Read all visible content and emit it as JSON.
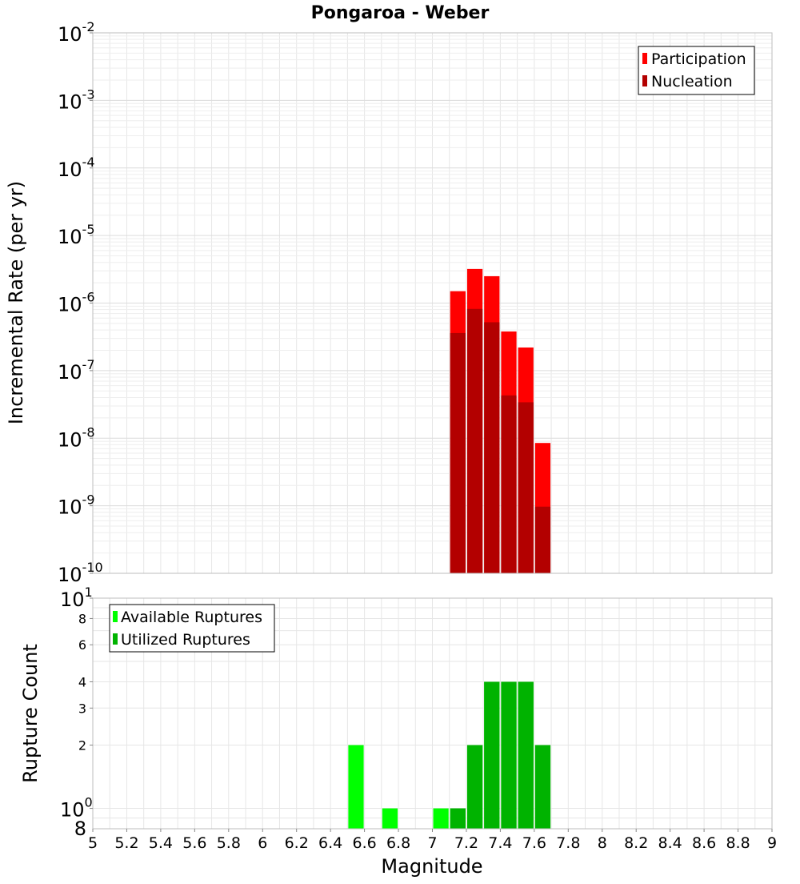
{
  "chart_data": [
    {
      "type": "bar",
      "title": "Pongaroa - Weber",
      "xlabel": "Magnitude",
      "ylabel": "Incremental Rate (per yr)",
      "yscale": "log",
      "xlim": [
        5,
        9
      ],
      "ylim": [
        1e-10,
        0.01
      ],
      "grid": true,
      "legend_position": "top-right",
      "bar_width": 0.1,
      "y_ticks": [
        {
          "value": 0.01,
          "base": "10",
          "exp": "-2"
        },
        {
          "value": 0.001,
          "base": "10",
          "exp": "-3"
        },
        {
          "value": 0.0001,
          "base": "10",
          "exp": "-4"
        },
        {
          "value": 1e-05,
          "base": "10",
          "exp": "-5"
        },
        {
          "value": 1e-06,
          "base": "10",
          "exp": "-6"
        },
        {
          "value": 1e-07,
          "base": "10",
          "exp": "-7"
        },
        {
          "value": 1e-08,
          "base": "10",
          "exp": "-8"
        },
        {
          "value": 1e-09,
          "base": "10",
          "exp": "-9"
        },
        {
          "value": 1e-10,
          "base": "10",
          "exp": "-10"
        }
      ],
      "series": [
        {
          "name": "Participation",
          "color": "#ff0000",
          "x": [
            7.15,
            7.25,
            7.35,
            7.45,
            7.55,
            7.65
          ],
          "values": [
            1.5e-06,
            3.2e-06,
            2.5e-06,
            3.8e-07,
            2.2e-07,
            8.5e-09
          ]
        },
        {
          "name": "Nucleation",
          "color": "#b30000",
          "x": [
            7.15,
            7.25,
            7.35,
            7.45,
            7.55,
            7.65
          ],
          "values": [
            3.6e-07,
            8.2e-07,
            5.2e-07,
            4.3e-08,
            3.4e-08,
            9.7e-10
          ]
        }
      ]
    },
    {
      "type": "bar",
      "xlabel": "Magnitude",
      "ylabel": "Rupture Count",
      "yscale": "log",
      "xlim": [
        5,
        9
      ],
      "ylim": [
        0.8,
        10
      ],
      "grid": true,
      "legend_position": "top-left",
      "bar_width": 0.1,
      "x_ticks": [
        "5",
        "5.2",
        "5.4",
        "5.6",
        "5.8",
        "6",
        "6.2",
        "6.4",
        "6.6",
        "6.8",
        "7",
        "7.2",
        "7.4",
        "7.6",
        "7.8",
        "8",
        "8.2",
        "8.4",
        "8.6",
        "8.8",
        "9"
      ],
      "y_ticks_major": [
        {
          "value": 10,
          "base": "10",
          "exp": "1"
        },
        {
          "value": 1,
          "base": "10",
          "exp": "0"
        }
      ],
      "y_ticks_minor": [
        {
          "value": 8,
          "label": "8"
        },
        {
          "value": 6,
          "label": "6"
        },
        {
          "value": 4,
          "label": "4"
        },
        {
          "value": 3,
          "label": "3"
        },
        {
          "value": 2,
          "label": "2"
        }
      ],
      "y_bottom_label": {
        "value": 0.8,
        "label": "8"
      },
      "series": [
        {
          "name": "Available Ruptures",
          "color": "#00ff00",
          "x": [
            6.55,
            6.75,
            7.05,
            7.15,
            7.25,
            7.35,
            7.45,
            7.55,
            7.65
          ],
          "values": [
            2,
            1,
            1,
            1,
            2,
            4,
            4,
            4,
            2
          ]
        },
        {
          "name": "Utilized Ruptures",
          "color": "#00b300",
          "x": [
            7.15,
            7.25,
            7.35,
            7.45,
            7.55,
            7.65
          ],
          "values": [
            1,
            2,
            4,
            4,
            4,
            2
          ]
        }
      ]
    }
  ]
}
